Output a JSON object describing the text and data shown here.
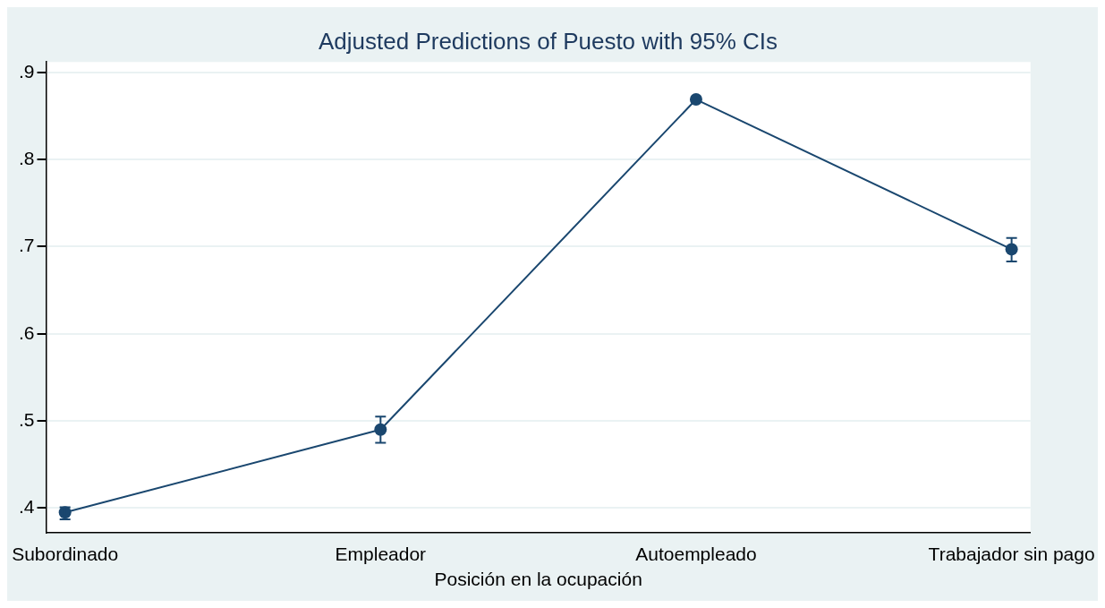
{
  "chart_data": {
    "type": "line",
    "title": "Adjusted Predictions of Puesto with 95% CIs",
    "xlabel": "Posición en la ocupación",
    "categories": [
      "Subordinado",
      "Empleador",
      "Autoempleado",
      "Trabajador sin pago"
    ],
    "series": [
      {
        "color": "#1a476f",
        "values": [
          0.395,
          0.49,
          0.869,
          0.697
        ],
        "errors": [
          [
            0.387,
            0.401
          ],
          [
            0.475,
            0.505
          ],
          null,
          [
            0.683,
            0.71
          ]
        ]
      }
    ],
    "ylim": [
      0.372,
      0.912
    ],
    "yticks": [
      {
        "value": 0.4,
        "label": ".4"
      },
      {
        "value": 0.5,
        "label": ".5"
      },
      {
        "value": 0.6,
        "label": ".6"
      },
      {
        "value": 0.7,
        "label": ".7"
      },
      {
        "value": 0.8,
        "label": ".8"
      },
      {
        "value": 0.9,
        "label": ".9"
      }
    ],
    "grid": "y",
    "legend": false,
    "marker": "circle",
    "line_style": "solid"
  }
}
